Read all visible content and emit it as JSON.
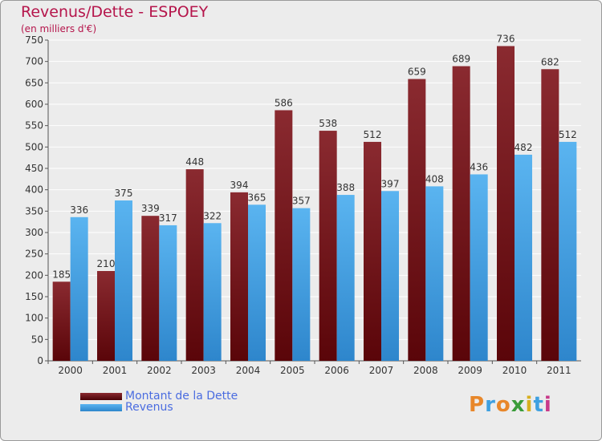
{
  "chart_data": {
    "type": "bar",
    "title": "Revenus/Dette - ESPOEY",
    "subtitle": "(en milliers d'€)",
    "categories": [
      "2000",
      "2001",
      "2002",
      "2003",
      "2004",
      "2005",
      "2006",
      "2007",
      "2008",
      "2009",
      "2010",
      "2011"
    ],
    "series": [
      {
        "name": "Montant de la Dette",
        "color": "#7a1419",
        "values": [
          185,
          210,
          339,
          448,
          394,
          586,
          538,
          512,
          659,
          689,
          736,
          682
        ]
      },
      {
        "name": "Revenus",
        "color": "#4aa5e8",
        "values": [
          336,
          375,
          317,
          322,
          365,
          357,
          388,
          397,
          408,
          436,
          482,
          512
        ]
      }
    ],
    "ylim": [
      0,
      750
    ],
    "yticks": [
      0,
      50,
      100,
      150,
      200,
      250,
      300,
      350,
      400,
      450,
      500,
      550,
      600,
      650,
      700,
      750
    ],
    "grid": true,
    "legend_position": "bottom-left"
  },
  "logo": {
    "text": "Proxiti",
    "letter_colors": [
      "#e8872a",
      "#3fa0e0",
      "#e8872a",
      "#3a9c3a",
      "#d8b020",
      "#3fa0e0",
      "#c83a8a"
    ]
  }
}
